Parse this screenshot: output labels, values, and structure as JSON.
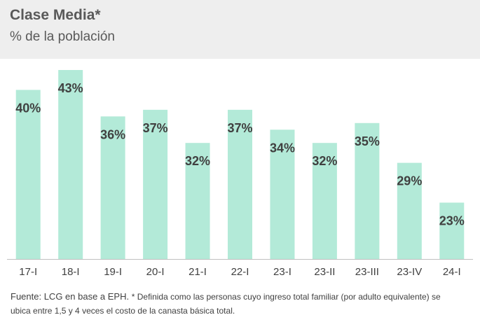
{
  "title": "Clase Media*",
  "subtitle": "% de la población",
  "source": "Fuente: LCG en base a EPH.",
  "note": "* Definida como las personas cuyo ingreso total familiar (por adulto equivalente) se ubica entre 1,5 y 4 veces el costo de la canasta básica total.",
  "colors": {
    "bar": "#b3ead8",
    "label": "#404040",
    "axis": "#bfbfbf",
    "header_bg": "#eeeeee"
  },
  "chart_data": {
    "type": "bar",
    "title": "Clase Media*",
    "subtitle": "% de la población",
    "categories": [
      "17-I",
      "18-I",
      "19-I",
      "20-I",
      "21-I",
      "22-I",
      "23-I",
      "23-II",
      "23-III",
      "23-IV",
      "24-I"
    ],
    "values": [
      40,
      43,
      36,
      37,
      32,
      37,
      34,
      32,
      35,
      29,
      23
    ],
    "data_labels": [
      "40%",
      "43%",
      "36%",
      "37%",
      "32%",
      "37%",
      "34%",
      "32%",
      "35%",
      "29%",
      "23%"
    ],
    "ylim": [
      14.5,
      43
    ],
    "grid": false,
    "legend": "none",
    "xlabel": "",
    "ylabel": ""
  }
}
